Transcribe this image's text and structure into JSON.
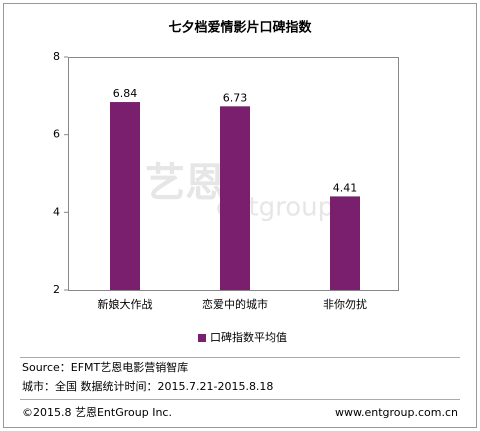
{
  "chart_data": {
    "type": "bar",
    "title": "七夕档爱情影片口碑指数",
    "categories": [
      "新娘大作战",
      "恋爱中的城市",
      "非你勿扰"
    ],
    "series": [
      {
        "name": "口碑指数平均值",
        "color": "#7a1f6e",
        "values": [
          6.84,
          6.73,
          4.41
        ]
      }
    ],
    "ylim": [
      2,
      8
    ],
    "yticks": [
      2,
      4,
      6,
      8
    ],
    "grid": false,
    "legend": "bottom",
    "watermark": [
      "艺恩",
      "entgroup"
    ],
    "notes": [
      "Source：EFMT艺恩电影营销智库",
      "城市：全国  数据统计时间：2015.7.21-2015.8.18"
    ],
    "footer": [
      "©2015.8 艺恩EntGroup Inc.",
      "www.entgroup.com.cn"
    ]
  }
}
